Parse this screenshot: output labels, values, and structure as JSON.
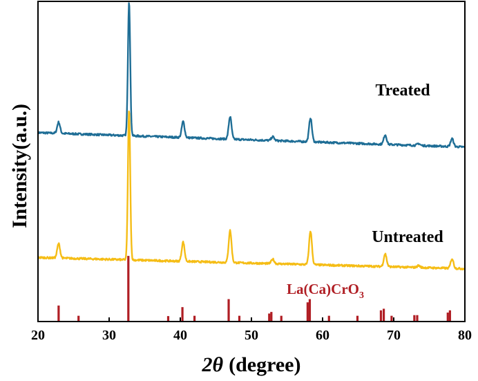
{
  "chart_data": {
    "type": "line",
    "title": "",
    "xlabel_symbol": "2θ",
    "xlabel_unit": "(degree)",
    "ylabel": "Intensity(a.u.)",
    "xlim": [
      20,
      80
    ],
    "x_ticks": [
      20,
      30,
      40,
      50,
      60,
      70,
      80
    ],
    "y_ticks_shown": false,
    "colors": {
      "treated": "#1f6e96",
      "untreated": "#f5bd16",
      "reference": "#b01e24",
      "axis": "#000000"
    },
    "series": [
      {
        "name": "Treated",
        "baseline_start": 0.59,
        "baseline_end": 0.545,
        "peaks": [
          {
            "x": 22.9,
            "h": 0.035
          },
          {
            "x": 32.8,
            "h": 0.42
          },
          {
            "x": 40.4,
            "h": 0.05
          },
          {
            "x": 47.0,
            "h": 0.07
          },
          {
            "x": 53.0,
            "h": 0.012
          },
          {
            "x": 58.3,
            "h": 0.075
          },
          {
            "x": 68.8,
            "h": 0.03
          },
          {
            "x": 73.5,
            "h": 0.006
          },
          {
            "x": 78.2,
            "h": 0.025
          }
        ]
      },
      {
        "name": "Untreated",
        "baseline_start": 0.2,
        "baseline_end": 0.165,
        "peaks": [
          {
            "x": 22.9,
            "h": 0.045
          },
          {
            "x": 32.8,
            "h": 0.47
          },
          {
            "x": 40.4,
            "h": 0.06
          },
          {
            "x": 47.0,
            "h": 0.1
          },
          {
            "x": 53.0,
            "h": 0.014
          },
          {
            "x": 58.3,
            "h": 0.105
          },
          {
            "x": 68.8,
            "h": 0.04
          },
          {
            "x": 73.5,
            "h": 0.006
          },
          {
            "x": 78.2,
            "h": 0.03
          }
        ]
      }
    ],
    "reference": {
      "name": "La(Ca)CrO",
      "subscript": "3",
      "peaks": [
        {
          "x": 22.9,
          "h": 0.05
        },
        {
          "x": 25.7,
          "h": 0.018
        },
        {
          "x": 32.7,
          "h": 0.205
        },
        {
          "x": 38.3,
          "h": 0.017
        },
        {
          "x": 40.3,
          "h": 0.045
        },
        {
          "x": 42.0,
          "h": 0.018
        },
        {
          "x": 46.8,
          "h": 0.07
        },
        {
          "x": 48.3,
          "h": 0.018
        },
        {
          "x": 52.5,
          "h": 0.025
        },
        {
          "x": 52.8,
          "h": 0.03
        },
        {
          "x": 54.2,
          "h": 0.018
        },
        {
          "x": 57.9,
          "h": 0.06
        },
        {
          "x": 58.2,
          "h": 0.07
        },
        {
          "x": 60.9,
          "h": 0.018
        },
        {
          "x": 64.9,
          "h": 0.018
        },
        {
          "x": 68.2,
          "h": 0.035
        },
        {
          "x": 68.6,
          "h": 0.04
        },
        {
          "x": 69.7,
          "h": 0.018
        },
        {
          "x": 72.9,
          "h": 0.02
        },
        {
          "x": 73.3,
          "h": 0.02
        },
        {
          "x": 77.6,
          "h": 0.028
        },
        {
          "x": 77.9,
          "h": 0.035
        }
      ]
    }
  }
}
